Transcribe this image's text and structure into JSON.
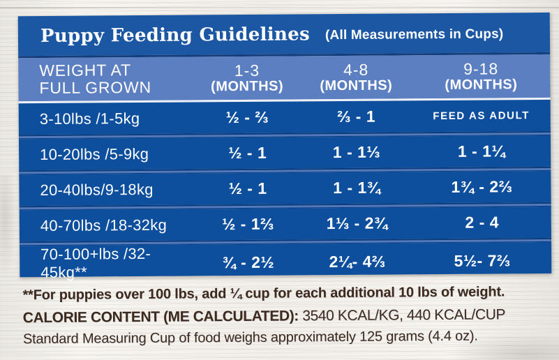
{
  "colors": {
    "title_bar_blue": "#1c57a4",
    "header_blue": "#5b7fc0",
    "row_blue": "#0d4e9d",
    "divider_blue": "#527abc",
    "navy_line": "#133e7b",
    "footnote_brown": "#3e2a1d",
    "wood_background": "#f2f0eb",
    "text_white": "#ffffff"
  },
  "table": {
    "title": "Puppy Feeding Guidelines",
    "subtitle": "(All Measurements in Cups)",
    "header": {
      "weight_line1": "WEIGHT AT",
      "weight_line2": "FULL GROWN",
      "cols": [
        {
          "range": "1-3",
          "unit": "(MONTHS)"
        },
        {
          "range": "4-8",
          "unit": "(MONTHS)"
        },
        {
          "range": "9-18",
          "unit": "(MONTHS)"
        }
      ]
    },
    "rows": [
      {
        "weight": "3-10lbs /1-5kg",
        "cups_1_3": "½ - ⅔",
        "cups_4_8": "⅔ - 1",
        "cups_9_18": "FEED AS ADULT"
      },
      {
        "weight": "10-20lbs /5-9kg",
        "cups_1_3": "½ - 1",
        "cups_4_8": "1 - 1⅓",
        "cups_9_18": "1 - 1¼"
      },
      {
        "weight": "20-40lbs/9-18kg",
        "cups_1_3": "½ - 1",
        "cups_4_8": "1 - 1¾",
        "cups_9_18": "1¾ - 2⅔"
      },
      {
        "weight": "40-70lbs /18-32kg",
        "cups_1_3": "½ - 1⅔",
        "cups_4_8": "1⅓ - 2¾",
        "cups_9_18": "2 - 4"
      },
      {
        "weight": "70-100+lbs /32-45kg**",
        "cups_1_3": "¾ - 2½",
        "cups_4_8": "2¼- 4⅔",
        "cups_9_18": "5½- 7⅔"
      }
    ]
  },
  "footnotes": {
    "weight_note": "**For puppies over 100 lbs, add ¼ cup for each additional 10 lbs of weight.",
    "calorie_label": "CALORIE CONTENT (ME CALCULATED):",
    "calorie_value": " 3540 KCAL/KG, 440 KCAL/CUP",
    "cup_note": "Standard Measuring Cup of food weighs approximately 125 grams (4.4 oz)."
  },
  "chart_data": {
    "type": "table",
    "title": "Puppy Feeding Guidelines (All Measurements in Cups)",
    "columns": [
      "WEIGHT AT FULL GROWN",
      "1-3 (MONTHS)",
      "4-8 (MONTHS)",
      "9-18 (MONTHS)"
    ],
    "rows": [
      [
        "3-10lbs /1-5kg",
        "½ - ⅔",
        "⅔ - 1",
        "FEED AS ADULT"
      ],
      [
        "10-20lbs /5-9kg",
        "½ - 1",
        "1 - 1⅓",
        "1 - 1¼"
      ],
      [
        "20-40lbs/9-18kg",
        "½ - 1",
        "1 - 1¾",
        "1¾ - 2⅔"
      ],
      [
        "40-70lbs /18-32kg",
        "½ - 1⅔",
        "1⅓ - 2¾",
        "2 - 4"
      ],
      [
        "70-100+lbs /32-45kg**",
        "¾ - 2½",
        "2¼- 4⅔",
        "5½- 7⅔"
      ]
    ]
  }
}
